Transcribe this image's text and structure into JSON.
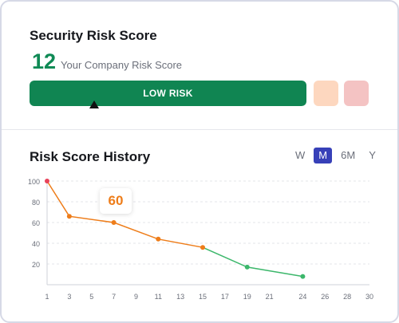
{
  "security": {
    "title": "Security Risk Score",
    "score": "12",
    "score_caption": "Your Company Risk Score",
    "risk_label": "LOW RISK",
    "colors": {
      "low": "#108552",
      "medium": "#fdd7bf",
      "high": "#f4c3c3"
    }
  },
  "history": {
    "title": "Risk Score History",
    "ranges": [
      "W",
      "M",
      "6M",
      "Y"
    ],
    "active_range": "M",
    "tooltip_value": "60"
  },
  "chart_data": {
    "type": "line",
    "x_ticks": [
      1,
      3,
      5,
      7,
      9,
      11,
      13,
      15,
      17,
      19,
      21,
      24,
      26,
      28,
      30
    ],
    "y_ticks": [
      20,
      40,
      60,
      80,
      100
    ],
    "xlim": [
      1,
      30
    ],
    "ylim": [
      0,
      100
    ],
    "grid": true,
    "points": [
      {
        "x": 1,
        "y": 100
      },
      {
        "x": 3,
        "y": 66
      },
      {
        "x": 7,
        "y": 60
      },
      {
        "x": 11,
        "y": 44
      },
      {
        "x": 15,
        "y": 36
      },
      {
        "x": 19,
        "y": 17
      },
      {
        "x": 24,
        "y": 8
      }
    ],
    "colors": {
      "line_orange": "#ee7d1a",
      "line_green": "#3cb76b",
      "start_point": "#e8435a"
    }
  }
}
